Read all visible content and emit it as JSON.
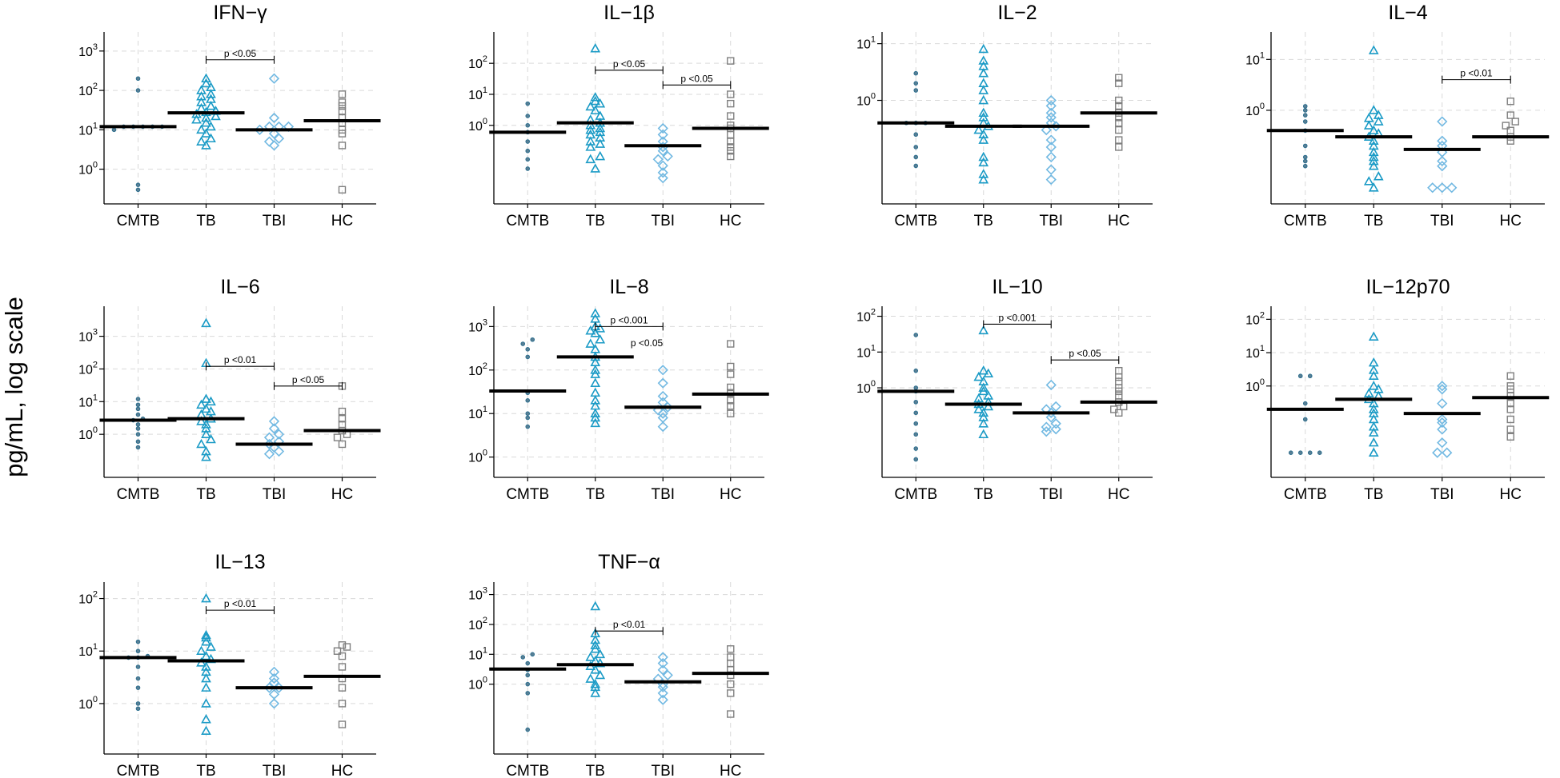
{
  "figure": {
    "ylabel": "pg/mL, log scale"
  },
  "colors": {
    "CMTB": "#2c6f8f",
    "TB": "#1b9bc6",
    "TBI": "#72b9e2",
    "HC": "#7f7f7f",
    "median": "#000000",
    "grid": "#d9d9d9"
  },
  "chart_data": [
    {
      "type": "scatter",
      "title": "IFN−γ",
      "categories": [
        "CMTB",
        "TB",
        "TBI",
        "HC"
      ],
      "yscale": "log",
      "ylim": [
        0.2,
        2000
      ],
      "yticks": [
        {
          "base": "10",
          "exp": "0",
          "v": 1
        },
        {
          "base": "10",
          "exp": "1",
          "v": 10
        },
        {
          "base": "10",
          "exp": "2",
          "v": 100
        },
        {
          "base": "10",
          "exp": "3",
          "v": 1000
        }
      ],
      "medians": [
        12,
        27,
        10,
        17
      ],
      "points": [
        [
          0.3,
          0.4,
          10,
          12,
          12,
          12,
          12,
          12,
          100,
          200
        ],
        [
          4,
          5,
          6,
          8,
          10,
          12,
          15,
          18,
          20,
          22,
          25,
          28,
          30,
          35,
          40,
          50,
          60,
          70,
          80,
          100,
          120,
          150,
          200
        ],
        [
          4,
          5,
          6,
          8,
          10,
          12,
          12,
          12,
          20,
          200
        ],
        [
          0.3,
          4,
          8,
          10,
          15,
          20,
          30,
          40,
          50,
          80
        ]
      ],
      "significance": [
        {
          "from": 1,
          "to": 2,
          "label": "p <0.05",
          "y": 600
        }
      ]
    },
    {
      "type": "scatter",
      "title": "IL−1β",
      "categories": [
        "CMTB",
        "TB",
        "TBI",
        "HC"
      ],
      "yscale": "log",
      "ylim": [
        0.005,
        600
      ],
      "yticks": [
        {
          "base": "10",
          "exp": "0",
          "v": 1
        },
        {
          "base": "10",
          "exp": "1",
          "v": 10
        },
        {
          "base": "10",
          "exp": "2",
          "v": 100
        }
      ],
      "medians": [
        0.6,
        1.2,
        0.22,
        0.8
      ],
      "points": [
        [
          0.04,
          0.08,
          0.15,
          0.3,
          0.6,
          1,
          2,
          5
        ],
        [
          0.04,
          0.08,
          0.1,
          0.2,
          0.25,
          0.3,
          0.4,
          0.5,
          0.6,
          0.7,
          0.8,
          1,
          1.2,
          1.5,
          2,
          3,
          4,
          5,
          6,
          8,
          300
        ],
        [
          0.02,
          0.03,
          0.05,
          0.08,
          0.1,
          0.15,
          0.2,
          0.3,
          0.5,
          0.8
        ],
        [
          0.1,
          0.15,
          0.2,
          0.3,
          0.5,
          0.8,
          1,
          2,
          5,
          10,
          120
        ]
      ],
      "significance": [
        {
          "from": 1,
          "to": 2,
          "label": "p <0.05",
          "y": 60
        },
        {
          "from": 2,
          "to": 3,
          "label": "p <0.05",
          "y": 20
        }
      ]
    },
    {
      "type": "scatter",
      "title": "IL−2",
      "categories": [
        "CMTB",
        "TB",
        "TBI",
        "HC"
      ],
      "yscale": "log",
      "ylim": [
        0.02,
        12
      ],
      "yticks": [
        {
          "base": "10",
          "exp": "0",
          "v": 1
        },
        {
          "base": "10",
          "exp": "1",
          "v": 10
        }
      ],
      "medians": [
        0.4,
        0.35,
        0.35,
        0.6
      ],
      "points": [
        [
          0.07,
          0.1,
          0.15,
          0.25,
          0.4,
          0.4,
          0.4,
          1.5,
          2,
          3
        ],
        [
          0.04,
          0.05,
          0.08,
          0.1,
          0.2,
          0.25,
          0.3,
          0.35,
          0.4,
          0.5,
          0.6,
          1,
          1.5,
          2,
          3,
          4,
          5,
          8
        ],
        [
          0.04,
          0.06,
          0.1,
          0.15,
          0.2,
          0.3,
          0.35,
          0.4,
          0.5,
          0.6,
          0.8,
          1
        ],
        [
          0.15,
          0.2,
          0.3,
          0.4,
          0.5,
          0.6,
          0.8,
          1,
          2,
          2.5
        ]
      ],
      "significance": []
    },
    {
      "type": "scatter",
      "title": "IL−4",
      "categories": [
        "CMTB",
        "TB",
        "TBI",
        "HC"
      ],
      "yscale": "log",
      "ylim": [
        0.02,
        25
      ],
      "yticks": [
        {
          "base": "10",
          "exp": "0",
          "v": 1
        },
        {
          "base": "10",
          "exp": "1",
          "v": 10
        }
      ],
      "medians": [
        0.4,
        0.3,
        0.17,
        0.3
      ],
      "points": [
        [
          0.08,
          0.1,
          0.12,
          0.2,
          0.4,
          0.6,
          0.8,
          1,
          1.2
        ],
        [
          0.03,
          0.04,
          0.05,
          0.08,
          0.1,
          0.12,
          0.15,
          0.2,
          0.25,
          0.3,
          0.35,
          0.4,
          0.5,
          0.6,
          0.7,
          0.8,
          1,
          15
        ],
        [
          0.03,
          0.03,
          0.03,
          0.08,
          0.1,
          0.15,
          0.2,
          0.25,
          0.6
        ],
        [
          0.25,
          0.3,
          0.4,
          0.5,
          0.6,
          0.8,
          1.5
        ]
      ],
      "significance": [
        {
          "from": 2,
          "to": 3,
          "label": "p <0.01",
          "y": 4
        }
      ]
    },
    {
      "type": "scatter",
      "title": "IL−6",
      "categories": [
        "CMTB",
        "TB",
        "TBI",
        "HC"
      ],
      "yscale": "log",
      "ylim": [
        0.08,
        5000
      ],
      "yticks": [
        {
          "base": "10",
          "exp": "0",
          "v": 1
        },
        {
          "base": "10",
          "exp": "1",
          "v": 10
        },
        {
          "base": "10",
          "exp": "2",
          "v": 100
        },
        {
          "base": "10",
          "exp": "3",
          "v": 1000
        }
      ],
      "medians": [
        2.7,
        3,
        0.5,
        1.3
      ],
      "points": [
        [
          0.4,
          0.6,
          1,
          1.5,
          2,
          2.7,
          3,
          4,
          6,
          8,
          12
        ],
        [
          0.2,
          0.3,
          0.5,
          0.7,
          1,
          1.5,
          2,
          2.5,
          3,
          4,
          5,
          6,
          8,
          10,
          12,
          150,
          2500
        ],
        [
          0.25,
          0.3,
          0.4,
          0.5,
          0.6,
          0.8,
          1,
          1.5,
          2.5
        ],
        [
          0.5,
          0.8,
          1,
          1.3,
          2,
          3,
          5,
          30
        ]
      ],
      "significance": [
        {
          "from": 1,
          "to": 2,
          "label": "p <0.01",
          "y": 120
        },
        {
          "from": 2,
          "to": 3,
          "label": "p <0.05",
          "y": 30
        }
      ]
    },
    {
      "type": "scatter",
      "title": "IL−8",
      "categories": [
        "CMTB",
        "TB",
        "TBI",
        "HC"
      ],
      "yscale": "log",
      "ylim": [
        0.5,
        2000
      ],
      "yticks": [
        {
          "base": "10",
          "exp": "0",
          "v": 1
        },
        {
          "base": "10",
          "exp": "1",
          "v": 10
        },
        {
          "base": "10",
          "exp": "2",
          "v": 100
        },
        {
          "base": "10",
          "exp": "3",
          "v": 1000
        }
      ],
      "medians": [
        33,
        200,
        14,
        28
      ],
      "points": [
        [
          5,
          8,
          10,
          20,
          30,
          200,
          300,
          400,
          500
        ],
        [
          6,
          8,
          10,
          15,
          20,
          30,
          50,
          80,
          100,
          150,
          200,
          300,
          400,
          500,
          700,
          800,
          900,
          1000,
          1500,
          2000
        ],
        [
          5,
          8,
          10,
          12,
          14,
          18,
          25,
          50,
          100
        ],
        [
          10,
          15,
          20,
          30,
          40,
          80,
          120,
          400
        ]
      ],
      "significance": [
        {
          "from": 1,
          "to": 2,
          "label": "p <0.001",
          "y": 1000
        },
        {
          "from": 1,
          "to": 2,
          "label": "p <0.05",
          "y": 300,
          "nobar": true
        }
      ]
    },
    {
      "type": "scatter",
      "title": "IL−10",
      "categories": [
        "CMTB",
        "TB",
        "TBI",
        "HC"
      ],
      "yscale": "log",
      "ylim": [
        0.005,
        120
      ],
      "yticks": [
        {
          "base": "10",
          "exp": "0",
          "v": 1
        },
        {
          "base": "10",
          "exp": "1",
          "v": 10
        },
        {
          "base": "10",
          "exp": "2",
          "v": 100
        }
      ],
      "medians": [
        0.8,
        0.35,
        0.2,
        0.4
      ],
      "points": [
        [
          0.01,
          0.02,
          0.05,
          0.1,
          0.2,
          0.4,
          0.8,
          1,
          3,
          30
        ],
        [
          0.05,
          0.1,
          0.15,
          0.2,
          0.25,
          0.3,
          0.35,
          0.4,
          0.5,
          0.6,
          0.8,
          1,
          1.5,
          2,
          2.5,
          3,
          40
        ],
        [
          0.06,
          0.07,
          0.08,
          0.1,
          0.15,
          0.2,
          0.25,
          0.3,
          1.2
        ],
        [
          0.2,
          0.25,
          0.3,
          0.4,
          0.6,
          0.8,
          1,
          1.5,
          2,
          3
        ]
      ],
      "significance": [
        {
          "from": 1,
          "to": 2,
          "label": "p <0.001",
          "y": 60
        },
        {
          "from": 2,
          "to": 3,
          "label": "p <0.05",
          "y": 6
        }
      ]
    },
    {
      "type": "scatter",
      "title": "IL−12p70",
      "categories": [
        "CMTB",
        "TB",
        "TBI",
        "HC"
      ],
      "yscale": "log",
      "ylim": [
        0.003,
        150
      ],
      "yticks": [
        {
          "base": "10",
          "exp": "0",
          "v": 1
        },
        {
          "base": "10",
          "exp": "1",
          "v": 10
        },
        {
          "base": "10",
          "exp": "2",
          "v": 100
        }
      ],
      "medians": [
        0.2,
        0.4,
        0.15,
        0.45
      ],
      "points": [
        [
          0.01,
          0.01,
          0.01,
          0.01,
          0.1,
          0.3,
          2,
          2
        ],
        [
          0.01,
          0.02,
          0.04,
          0.06,
          0.1,
          0.15,
          0.2,
          0.3,
          0.4,
          0.5,
          0.6,
          0.8,
          1,
          2,
          3,
          5,
          30
        ],
        [
          0.01,
          0.01,
          0.02,
          0.05,
          0.08,
          0.1,
          0.3,
          0.8,
          1
        ],
        [
          0.03,
          0.05,
          0.1,
          0.2,
          0.3,
          0.5,
          0.8,
          1,
          2
        ]
      ],
      "significance": []
    },
    {
      "type": "scatter",
      "title": "IL−13",
      "categories": [
        "CMTB",
        "TB",
        "TBI",
        "HC"
      ],
      "yscale": "log",
      "ylim": [
        0.15,
        150
      ],
      "yticks": [
        {
          "base": "10",
          "exp": "0",
          "v": 1
        },
        {
          "base": "10",
          "exp": "1",
          "v": 10
        },
        {
          "base": "10",
          "exp": "2",
          "v": 100
        }
      ],
      "medians": [
        7.5,
        6.5,
        2,
        3.3
      ],
      "points": [
        [
          0.8,
          1,
          2,
          3,
          5,
          7.5,
          7.5,
          8,
          10,
          15
        ],
        [
          0.3,
          0.5,
          1,
          2,
          3,
          4,
          5,
          6,
          7,
          8,
          10,
          12,
          15,
          18,
          20,
          100
        ],
        [
          1,
          1.5,
          2,
          2,
          2.5,
          3,
          4
        ],
        [
          0.4,
          1,
          2,
          3,
          5,
          8,
          10,
          12,
          13
        ]
      ],
      "significance": [
        {
          "from": 1,
          "to": 2,
          "label": "p <0.01",
          "y": 60
        }
      ]
    },
    {
      "type": "scatter",
      "title": "TNF−α",
      "categories": [
        "CMTB",
        "TB",
        "TBI",
        "HC"
      ],
      "yscale": "log",
      "ylim": [
        0.008,
        1500
      ],
      "yticks": [
        {
          "base": "10",
          "exp": "0",
          "v": 1
        },
        {
          "base": "10",
          "exp": "1",
          "v": 10
        },
        {
          "base": "10",
          "exp": "2",
          "v": 100
        },
        {
          "base": "10",
          "exp": "3",
          "v": 1000
        }
      ],
      "medians": [
        3.2,
        4.5,
        1.2,
        2.3
      ],
      "points": [
        [
          0.03,
          0.5,
          1,
          2,
          3,
          5,
          8,
          10
        ],
        [
          0.5,
          0.8,
          1,
          1.5,
          2,
          3,
          4,
          5,
          6,
          8,
          10,
          15,
          20,
          30,
          50,
          400
        ],
        [
          0.3,
          0.5,
          0.8,
          1,
          1.5,
          2,
          3,
          5,
          8
        ],
        [
          0.1,
          0.5,
          1,
          2,
          3,
          5,
          8,
          15
        ]
      ],
      "significance": [
        {
          "from": 1,
          "to": 2,
          "label": "p <0.01",
          "y": 60
        }
      ]
    }
  ]
}
